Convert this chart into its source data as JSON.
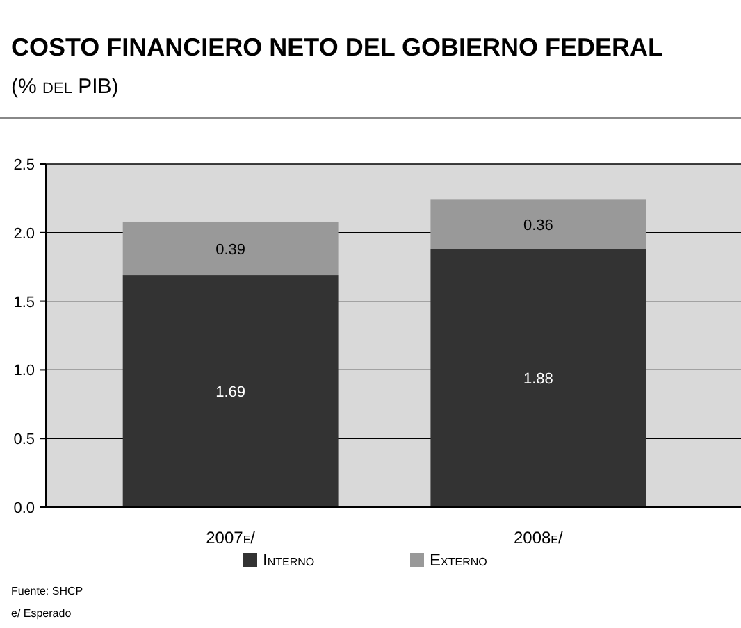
{
  "chart_data": {
    "type": "bar",
    "title": "COSTO FINANCIERO NETO DEL GOBIERNO FEDERAL",
    "subtitle": "(% del PIB)",
    "categories": [
      "2007e/",
      "2008e/"
    ],
    "stacked": true,
    "series": [
      {
        "name": "Interno",
        "color": "#333333",
        "values": [
          1.69,
          1.88
        ]
      },
      {
        "name": "Externo",
        "color": "#999999",
        "values": [
          0.39,
          0.36
        ]
      }
    ],
    "ylim": [
      0,
      2.5
    ],
    "yticks": [
      {
        "value": 0,
        "label": "0.0"
      },
      {
        "value": 0.5,
        "label": "0.5"
      },
      {
        "value": 1,
        "label": "1.0"
      },
      {
        "value": 1.5,
        "label": "1.5"
      },
      {
        "value": 2,
        "label": "2.0"
      },
      {
        "value": 2.5,
        "label": "2.5"
      }
    ],
    "grid": "y",
    "data_labels": true,
    "legend": "bottom",
    "annotations": [
      "Fuente: SHCP",
      "e/ Esperado"
    ]
  }
}
